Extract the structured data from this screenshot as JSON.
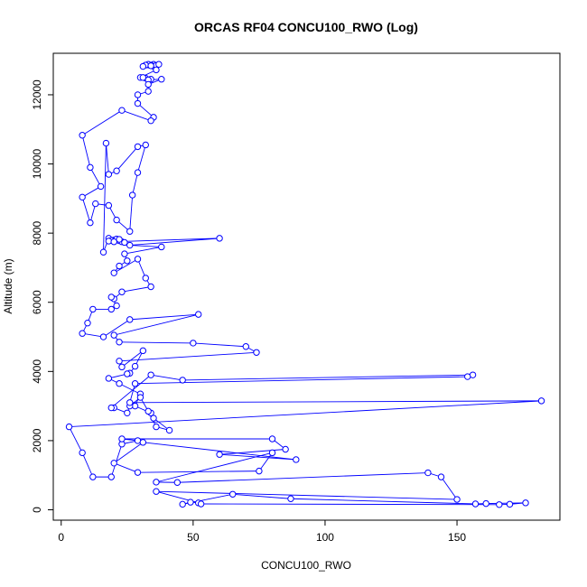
{
  "chart_data": {
    "type": "line",
    "title": "ORCAS RF04 CONCU100_RWO (Log)",
    "xlabel": "CONCU100_RWO",
    "ylabel": "Altitude (m)",
    "xlim": [
      -3,
      189
    ],
    "ylim": [
      -300,
      13200
    ],
    "xticks": [
      0,
      50,
      100,
      150
    ],
    "yticks": [
      0,
      2000,
      4000,
      6000,
      8000,
      10000,
      12000
    ],
    "grid": false,
    "series_color": "#0000ff",
    "marker": "open-circle",
    "points": [
      [
        35,
        12880
      ],
      [
        34,
        12860
      ],
      [
        33,
        12880
      ],
      [
        36,
        12850
      ],
      [
        32,
        12860
      ],
      [
        37,
        12880
      ],
      [
        34,
        12840
      ],
      [
        31,
        12820
      ],
      [
        36,
        12720
      ],
      [
        30,
        12500
      ],
      [
        32,
        12480
      ],
      [
        34,
        12450
      ],
      [
        31,
        12500
      ],
      [
        33,
        12430
      ],
      [
        38,
        12450
      ],
      [
        33,
        12300
      ],
      [
        33,
        12100
      ],
      [
        29,
        12000
      ],
      [
        29,
        11750
      ],
      [
        35,
        11350
      ],
      [
        34,
        11250
      ],
      [
        23,
        11550
      ],
      [
        8,
        10830
      ],
      [
        11,
        9900
      ],
      [
        15,
        9350
      ],
      [
        8,
        9040
      ],
      [
        11,
        8300
      ],
      [
        13,
        8850
      ],
      [
        18,
        8800
      ],
      [
        21,
        8380
      ],
      [
        26,
        8050
      ],
      [
        27,
        9100
      ],
      [
        29,
        9750
      ],
      [
        32,
        10550
      ],
      [
        29,
        10500
      ],
      [
        21,
        9800
      ],
      [
        18,
        9700
      ],
      [
        17,
        10600
      ],
      [
        16,
        7450
      ],
      [
        18,
        7850
      ],
      [
        20,
        7770
      ],
      [
        21,
        7800
      ],
      [
        22,
        7780
      ],
      [
        23,
        7750
      ],
      [
        20,
        7800
      ],
      [
        21,
        7830
      ],
      [
        19,
        7790
      ],
      [
        22,
        7820
      ],
      [
        24,
        7730
      ],
      [
        18,
        7770
      ],
      [
        20,
        7750
      ],
      [
        60,
        7850
      ],
      [
        26,
        7650
      ],
      [
        38,
        7600
      ],
      [
        24,
        7400
      ],
      [
        25,
        7200
      ],
      [
        22,
        7050
      ],
      [
        20,
        6850
      ],
      [
        29,
        7250
      ],
      [
        32,
        6700
      ],
      [
        34,
        6450
      ],
      [
        23,
        6300
      ],
      [
        20,
        6100
      ],
      [
        19,
        6150
      ],
      [
        21,
        5900
      ],
      [
        19,
        5800
      ],
      [
        12,
        5800
      ],
      [
        10,
        5400
      ],
      [
        8,
        5100
      ],
      [
        16,
        5000
      ],
      [
        26,
        5500
      ],
      [
        52,
        5650
      ],
      [
        20,
        5050
      ],
      [
        22,
        4850
      ],
      [
        50,
        4820
      ],
      [
        70,
        4720
      ],
      [
        74,
        4550
      ],
      [
        22,
        4300
      ],
      [
        23,
        4130
      ],
      [
        31,
        4600
      ],
      [
        28,
        4150
      ],
      [
        26,
        3950
      ],
      [
        25,
        3930
      ],
      [
        18,
        3800
      ],
      [
        22,
        3650
      ],
      [
        30,
        3350
      ],
      [
        28,
        3000
      ],
      [
        34,
        2800
      ],
      [
        35,
        2650
      ],
      [
        41,
        2300
      ],
      [
        36,
        2400
      ],
      [
        33,
        2850
      ],
      [
        30,
        3250
      ],
      [
        26,
        3000
      ],
      [
        25,
        2800
      ],
      [
        20,
        2950
      ],
      [
        19,
        2950
      ],
      [
        34,
        3900
      ],
      [
        46,
        3750
      ],
      [
        156,
        3900
      ],
      [
        154,
        3850
      ],
      [
        28,
        3650
      ],
      [
        26,
        3100
      ],
      [
        182,
        3150
      ],
      [
        3,
        2400
      ],
      [
        8,
        1650
      ],
      [
        12,
        950
      ],
      [
        19,
        950
      ],
      [
        23,
        1900
      ],
      [
        29,
        2000
      ],
      [
        23,
        2050
      ],
      [
        80,
        2050
      ],
      [
        85,
        1750
      ],
      [
        60,
        1600
      ],
      [
        89,
        1450
      ],
      [
        31,
        1950
      ],
      [
        20,
        1350
      ],
      [
        29,
        1080
      ],
      [
        75,
        1120
      ],
      [
        80,
        1650
      ],
      [
        36,
        800
      ],
      [
        44,
        790
      ],
      [
        139,
        1070
      ],
      [
        144,
        950
      ],
      [
        150,
        300
      ],
      [
        36,
        530
      ],
      [
        52,
        200
      ],
      [
        49,
        220
      ],
      [
        46,
        160
      ],
      [
        65,
        450
      ],
      [
        87,
        320
      ],
      [
        157,
        170
      ],
      [
        161,
        180
      ],
      [
        176,
        200
      ],
      [
        170,
        160
      ],
      [
        166,
        150
      ],
      [
        53,
        170
      ]
    ]
  }
}
